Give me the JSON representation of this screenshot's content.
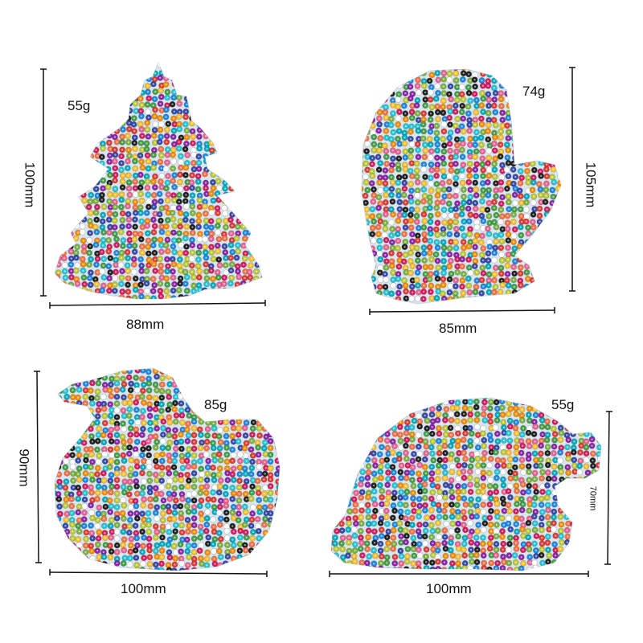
{
  "products": [
    {
      "shape": "christmas-tree",
      "weight": "55g",
      "height_label": "100mm",
      "width_label": "88mm"
    },
    {
      "shape": "mitten",
      "weight": "74g",
      "height_label": "105mm",
      "width_label": "85mm"
    },
    {
      "shape": "duck",
      "weight": "85g",
      "height_label": "90mm",
      "width_label": "100mm"
    },
    {
      "shape": "santa-hat",
      "weight": "55g",
      "height_label": "70mm",
      "width_label": "100mm"
    }
  ],
  "colors": {
    "bead_palette": [
      "#e53935",
      "#fbc02d",
      "#1e88e5",
      "#43a047",
      "#fb8c00",
      "#8e24aa",
      "#00acc1",
      "#f06292",
      "#212121",
      "#ffffff",
      "#7cb342",
      "#3949ab",
      "#ff7043",
      "#26c6da",
      "#c0ca33",
      "#d81b60"
    ],
    "pegboard": "#d9e6ee",
    "rule_line": "#111111"
  }
}
